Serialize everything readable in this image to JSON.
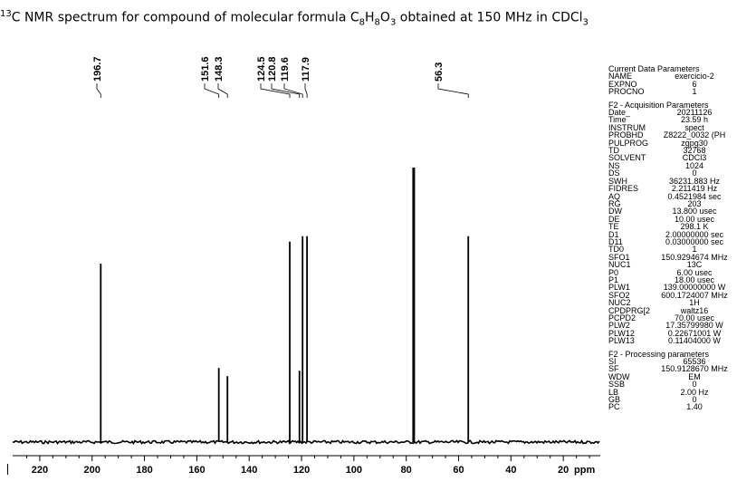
{
  "title": {
    "pre": "13",
    "main": "C NMR spectrum for compound of molecular formula C",
    "s1": "8",
    "h": "H",
    "s2": "8",
    "o": "O",
    "s3": "3",
    "post": " obtained at 150 MHz in CDCl",
    "s4": "3"
  },
  "chart_data": {
    "type": "line",
    "xlabel": "ppm",
    "xlim": [
      230,
      0
    ],
    "x_reversed": true,
    "x_ticks": [
      220,
      200,
      180,
      160,
      140,
      120,
      100,
      80,
      60,
      40,
      20
    ],
    "grid": false,
    "peaks": [
      {
        "shift": 196.7,
        "intensity": 0.65,
        "label": "196.7"
      },
      {
        "shift": 151.6,
        "intensity": 0.27,
        "label": "151.6"
      },
      {
        "shift": 148.3,
        "intensity": 0.24,
        "label": "148.3"
      },
      {
        "shift": 124.5,
        "intensity": 0.73,
        "label": "124.5"
      },
      {
        "shift": 120.8,
        "intensity": 0.26,
        "label": "120.8"
      },
      {
        "shift": 119.6,
        "intensity": 0.75,
        "label": "119.6"
      },
      {
        "shift": 117.9,
        "intensity": 0.75,
        "label": "117.9"
      },
      {
        "shift": 77.16,
        "intensity": 1.0,
        "label": ""
      },
      {
        "shift": 56.3,
        "intensity": 0.75,
        "label": "56.3"
      }
    ]
  },
  "params": {
    "groups": [
      {
        "header": "Current Data Parameters",
        "rows": [
          {
            "name": "NAME",
            "value": "exercicio-2"
          },
          {
            "name": "EXPNO",
            "value": "6"
          },
          {
            "name": "PROCNO",
            "value": "1"
          }
        ]
      },
      {
        "header": "F2 - Acquisition Parameters",
        "rows": [
          {
            "name": "Date_",
            "value": "20211126"
          },
          {
            "name": "Time",
            "value": "23.59 h"
          },
          {
            "name": "INSTRUM",
            "value": "spect"
          },
          {
            "name": "PROBHD",
            "value": "Z8222_0032 (PH"
          },
          {
            "name": "PULPROG",
            "value": "zgpg30"
          },
          {
            "name": "TD",
            "value": "32768"
          },
          {
            "name": "SOLVENT",
            "value": "CDCl3"
          },
          {
            "name": "NS",
            "value": "1024"
          },
          {
            "name": "DS",
            "value": "0"
          },
          {
            "name": "SWH",
            "value": "36231.883 Hz"
          },
          {
            "name": "FIDRES",
            "value": "2.211419 Hz"
          },
          {
            "name": "AQ",
            "value": "0.4521984 sec"
          },
          {
            "name": "RG",
            "value": "203"
          },
          {
            "name": "DW",
            "value": "13.800 usec"
          },
          {
            "name": "DE",
            "value": "10.00 usec"
          },
          {
            "name": "TE",
            "value": "298.1 K"
          },
          {
            "name": "D1",
            "value": "2.00000000 sec"
          },
          {
            "name": "D11",
            "value": "0.03000000 sec"
          },
          {
            "name": "TD0",
            "value": "1"
          },
          {
            "name": "SFO1",
            "value": "150.9294674 MHz"
          },
          {
            "name": "NUC1",
            "value": "13C"
          },
          {
            "name": "P0",
            "value": "6.00 usec"
          },
          {
            "name": "P1",
            "value": "18.00 usec"
          },
          {
            "name": "PLW1",
            "value": "139.00000000 W"
          },
          {
            "name": "SFO2",
            "value": "600.1724007 MHz"
          },
          {
            "name": "NUC2",
            "value": "1H"
          },
          {
            "name": "CPDPRG[2",
            "value": "waltz16"
          },
          {
            "name": "PCPD2",
            "value": "70.00 usec"
          },
          {
            "name": "PLW2",
            "value": "17.35799980 W"
          },
          {
            "name": "PLW12",
            "value": "0.22671001 W"
          },
          {
            "name": "PLW13",
            "value": "0.11404000 W"
          }
        ]
      },
      {
        "header": "F2 - Processing parameters",
        "rows": [
          {
            "name": "SI",
            "value": "65536"
          },
          {
            "name": "SF",
            "value": "150.9128670 MHz"
          },
          {
            "name": "WDW",
            "value": "EM"
          },
          {
            "name": "SSB",
            "value": "0"
          },
          {
            "name": "LB",
            "value": "2.00 Hz"
          },
          {
            "name": "GB",
            "value": "0"
          },
          {
            "name": "PC",
            "value": "1.40"
          }
        ]
      }
    ]
  }
}
